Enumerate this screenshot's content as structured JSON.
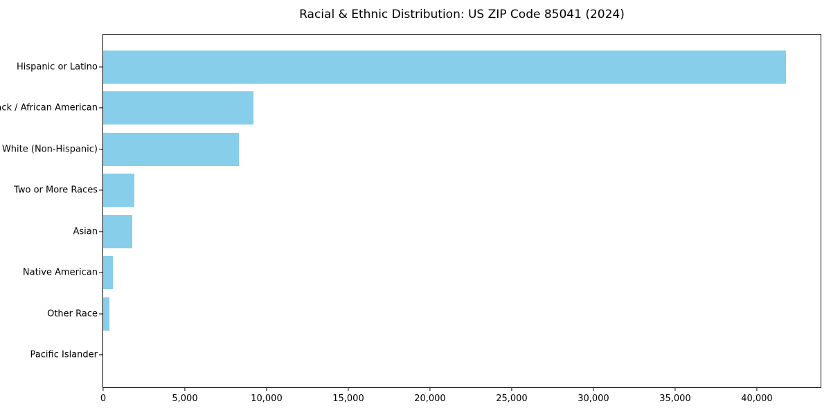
{
  "title": "Racial & Ethnic Distribution: US ZIP Code 85041 (2024)",
  "chart_data": {
    "type": "bar",
    "orientation": "horizontal",
    "title": "Racial & Ethnic Distribution: US ZIP Code 85041 (2024)",
    "categories": [
      "Hispanic or Latino",
      "Black / African American",
      "White (Non-Hispanic)",
      "Two or More Races",
      "Asian",
      "Native American",
      "Other Race",
      "Pacific Islander"
    ],
    "values": [
      41800,
      9200,
      8300,
      1900,
      1800,
      580,
      400,
      0
    ],
    "xlabel": "",
    "ylabel": "",
    "xlim": [
      0,
      43900
    ],
    "xticks": [
      0,
      5000,
      10000,
      15000,
      20000,
      25000,
      30000,
      35000,
      40000
    ],
    "xtick_labels": [
      "0",
      "5,000",
      "10,000",
      "15,000",
      "20,000",
      "25,000",
      "30,000",
      "35,000",
      "40,000"
    ],
    "bar_color": "#87CEEB",
    "axis_color": "#000000",
    "text_color": "#000000",
    "background_color": "#FFFFFF",
    "grid": false,
    "legend": null
  }
}
